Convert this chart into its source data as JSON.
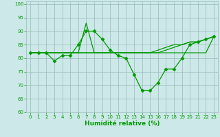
{
  "xlabel": "Humidité relative (%)",
  "background_color": "#cce8e8",
  "grid_color": "#99bbbb",
  "line_color": "#009900",
  "xlim": [
    -0.5,
    23.5
  ],
  "ylim": [
    60,
    101
  ],
  "yticks": [
    60,
    65,
    70,
    75,
    80,
    85,
    90,
    95,
    100
  ],
  "xticks": [
    0,
    1,
    2,
    3,
    4,
    5,
    6,
    7,
    8,
    9,
    10,
    11,
    12,
    13,
    14,
    15,
    16,
    17,
    18,
    19,
    20,
    21,
    22,
    23
  ],
  "series": [
    {
      "x": [
        0,
        1,
        2,
        3,
        4,
        5,
        6,
        7,
        8,
        9,
        10,
        11,
        12,
        13,
        14,
        15,
        16,
        17,
        18,
        19,
        20,
        21,
        22,
        23
      ],
      "y": [
        82,
        82,
        82,
        79,
        81,
        81,
        85,
        90,
        90,
        87,
        83,
        81,
        80,
        74,
        68,
        68,
        71,
        76,
        76,
        80,
        85,
        86,
        87,
        88
      ],
      "marker": "D",
      "markersize": 2.5,
      "lw": 0.9
    },
    {
      "x": [
        0,
        1,
        2,
        3,
        4,
        5,
        6,
        7,
        8,
        9,
        10,
        11,
        12,
        13,
        14,
        15,
        16,
        17,
        18,
        19,
        20,
        21,
        22,
        23
      ],
      "y": [
        82,
        82,
        82,
        82,
        82,
        82,
        82,
        93,
        82,
        82,
        82,
        82,
        82,
        82,
        82,
        82,
        82,
        82,
        82,
        82,
        82,
        82,
        82,
        88
      ],
      "marker": null,
      "markersize": 0,
      "lw": 0.9
    },
    {
      "x": [
        0,
        1,
        2,
        3,
        4,
        5,
        6,
        7,
        8,
        9,
        10,
        11,
        12,
        13,
        14,
        15,
        16,
        17,
        18,
        19,
        20,
        21,
        22,
        23
      ],
      "y": [
        82,
        82,
        82,
        82,
        82,
        82,
        82,
        82,
        82,
        82,
        82,
        82,
        82,
        82,
        82,
        82,
        83,
        84,
        85,
        85,
        86,
        86,
        87,
        88
      ],
      "marker": null,
      "markersize": 0,
      "lw": 0.9
    },
    {
      "x": [
        0,
        1,
        2,
        3,
        4,
        5,
        6,
        7,
        8,
        9,
        10,
        11,
        12,
        13,
        14,
        15,
        16,
        17,
        18,
        19,
        20,
        21,
        22,
        23
      ],
      "y": [
        82,
        82,
        82,
        82,
        82,
        82,
        82,
        82,
        82,
        82,
        82,
        82,
        82,
        82,
        82,
        82,
        82,
        83,
        84,
        85,
        86,
        86,
        87,
        88
      ],
      "marker": null,
      "markersize": 0,
      "lw": 0.9
    }
  ]
}
